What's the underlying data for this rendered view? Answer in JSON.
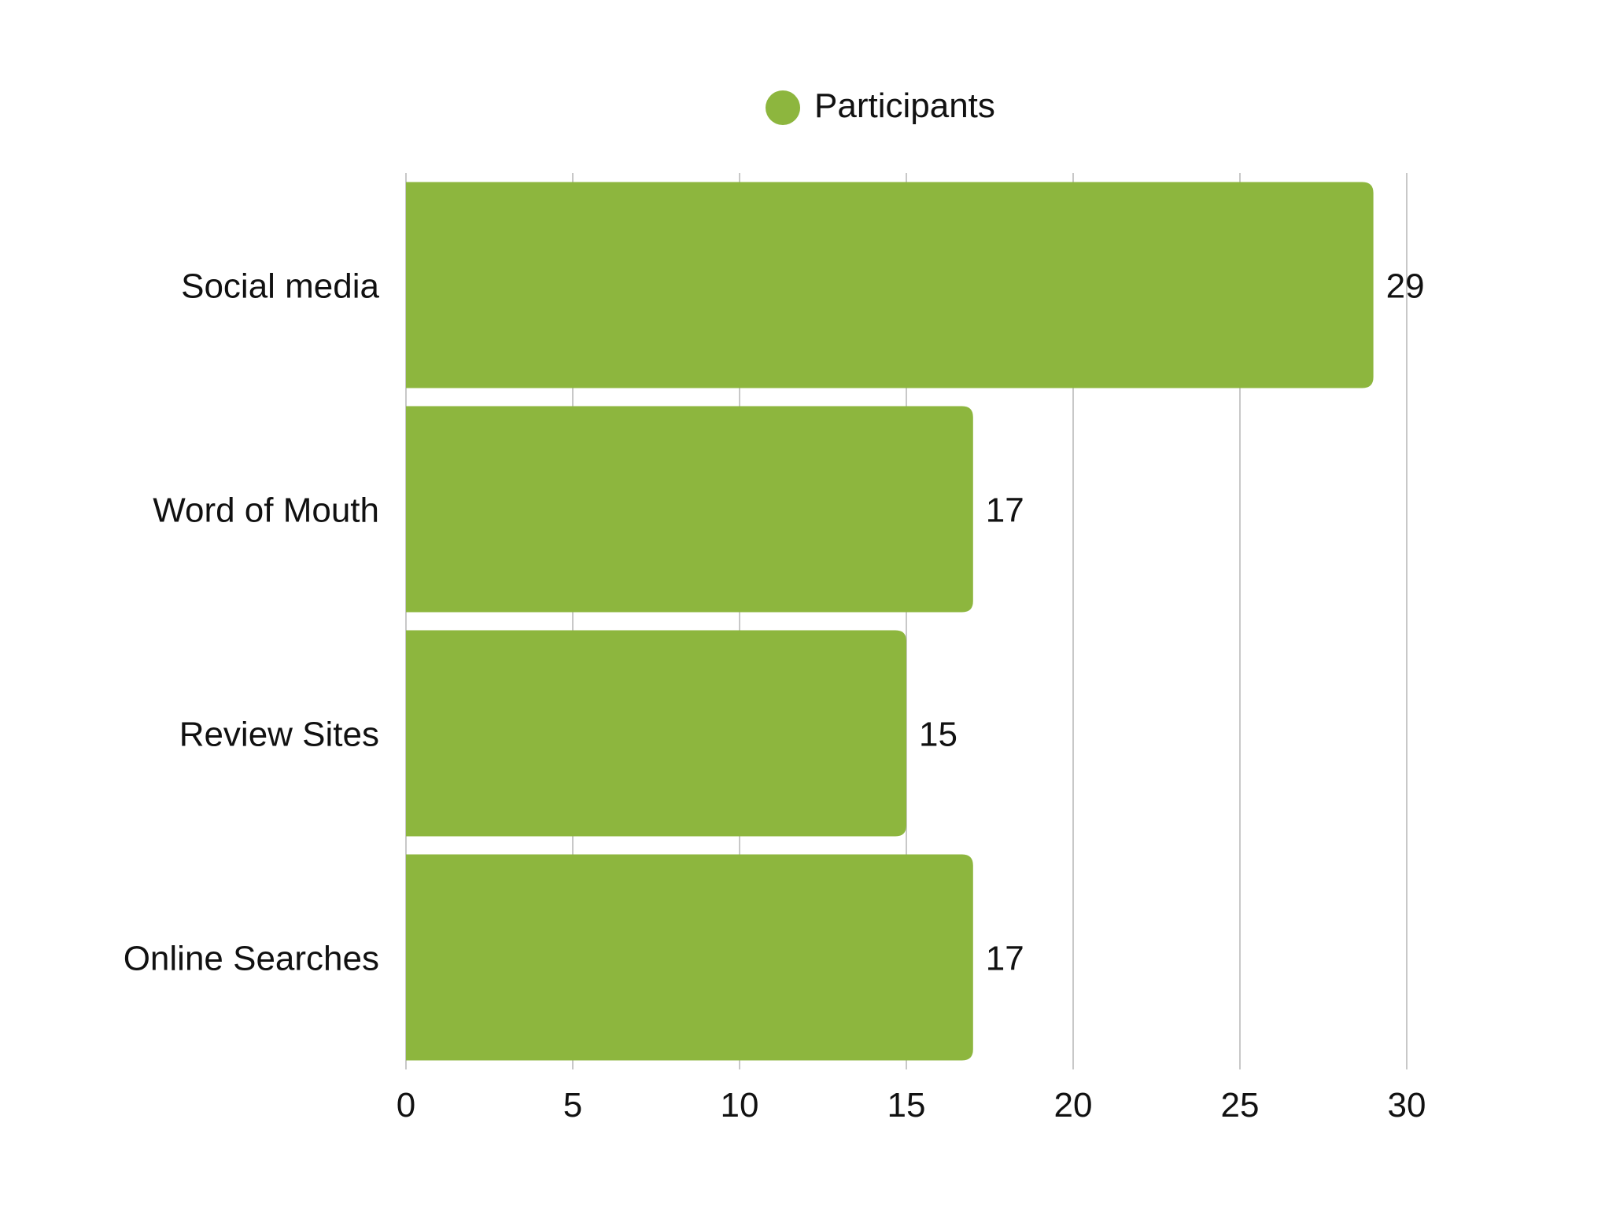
{
  "chart_data": {
    "type": "bar",
    "orientation": "horizontal",
    "categories": [
      "Social media",
      "Word of Mouth",
      "Review Sites",
      "Online Searches"
    ],
    "series": [
      {
        "name": "Participants",
        "values": [
          29,
          17,
          15,
          17
        ],
        "color": "#8db63e"
      }
    ],
    "data_labels": [
      "29",
      "17",
      "15",
      "17"
    ],
    "xlim": [
      0,
      30
    ],
    "x_ticks": [
      "0",
      "5",
      "10",
      "15",
      "20",
      "25",
      "30"
    ],
    "grid": true,
    "legend_position": "top-center",
    "gridline_color": "#c8c8c8"
  }
}
